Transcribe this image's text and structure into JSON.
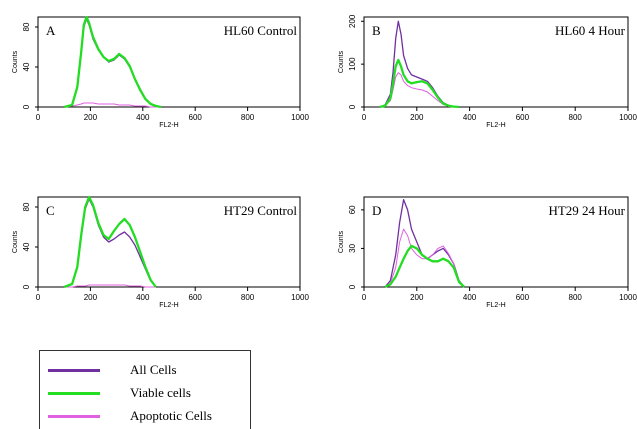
{
  "colors": {
    "all_cells": "#7030A0",
    "viable_cells": "#22DD22",
    "apoptotic_cells": "#E060E0",
    "axis": "#000000"
  },
  "legend": {
    "items": [
      {
        "label": "All Cells",
        "color": "#7030A0"
      },
      {
        "label": "Viable cells",
        "color": "#22DD22"
      },
      {
        "label": "Apoptotic Cells",
        "color": "#E060E0"
      }
    ]
  },
  "chart_data": [
    {
      "type": "area",
      "letter": "A",
      "title": "HL60 Control",
      "xlabel": "FL2-H",
      "ylabel": "Counts",
      "xlim": [
        0,
        1000
      ],
      "ylim": [
        0,
        90
      ],
      "xticks": [
        0,
        200,
        400,
        600,
        800,
        1000
      ],
      "xtick_labels": [
        "0",
        "200",
        "400",
        "600",
        "800",
        "1000"
      ],
      "yticks": [
        0,
        40,
        80
      ],
      "ytick_labels": [
        "0",
        "40",
        "80"
      ],
      "grid": false,
      "x": [
        100,
        130,
        150,
        165,
        175,
        185,
        195,
        210,
        230,
        250,
        270,
        290,
        310,
        330,
        350,
        370,
        390,
        410,
        430,
        450,
        470
      ],
      "series": [
        {
          "name": "All Cells",
          "values": [
            0,
            2,
            20,
            55,
            80,
            88,
            82,
            68,
            57,
            50,
            45,
            47,
            52,
            48,
            40,
            28,
            18,
            8,
            3,
            1,
            0
          ]
        },
        {
          "name": "Viable cells",
          "values": [
            0,
            2,
            20,
            55,
            82,
            90,
            84,
            70,
            58,
            50,
            46,
            48,
            53,
            49,
            41,
            28,
            17,
            8,
            3,
            1,
            0
          ]
        },
        {
          "name": "Apoptotic Cells",
          "values": [
            0,
            1,
            2,
            3,
            4,
            4,
            4,
            4,
            3,
            3,
            3,
            3,
            2,
            2,
            2,
            1,
            1,
            1,
            0,
            0,
            0
          ]
        }
      ]
    },
    {
      "type": "area",
      "letter": "B",
      "title": "HL60 4 Hour",
      "xlabel": "FL2-H",
      "ylabel": "Counts",
      "xlim": [
        0,
        1000
      ],
      "ylim": [
        0,
        210
      ],
      "xticks": [
        0,
        200,
        400,
        600,
        800,
        1000
      ],
      "xtick_labels": [
        "0",
        "200",
        "400",
        "600",
        "800",
        "1000"
      ],
      "yticks": [
        0,
        100,
        200
      ],
      "ytick_labels": [
        "0",
        "100",
        "200"
      ],
      "grid": false,
      "x": [
        60,
        80,
        100,
        110,
        120,
        130,
        140,
        150,
        165,
        180,
        200,
        220,
        240,
        260,
        280,
        300,
        320,
        340,
        360
      ],
      "series": [
        {
          "name": "All Cells",
          "values": [
            0,
            5,
            30,
            80,
            160,
            200,
            170,
            120,
            90,
            75,
            70,
            65,
            60,
            45,
            25,
            10,
            4,
            1,
            0
          ]
        },
        {
          "name": "Viable cells",
          "values": [
            0,
            3,
            20,
            55,
            95,
            110,
            95,
            75,
            60,
            55,
            58,
            60,
            55,
            40,
            22,
            8,
            3,
            1,
            0
          ]
        },
        {
          "name": "Apoptotic Cells",
          "values": [
            0,
            3,
            15,
            40,
            70,
            80,
            75,
            60,
            50,
            45,
            42,
            40,
            35,
            25,
            15,
            6,
            2,
            1,
            0
          ]
        }
      ]
    },
    {
      "type": "area",
      "letter": "C",
      "title": "HT29 Control",
      "xlabel": "FL2-H",
      "ylabel": "Counts",
      "xlim": [
        0,
        1000
      ],
      "ylim": [
        0,
        90
      ],
      "xticks": [
        0,
        200,
        400,
        600,
        800,
        1000
      ],
      "xtick_labels": [
        "0",
        "200",
        "400",
        "600",
        "800",
        "1000"
      ],
      "yticks": [
        0,
        40,
        80
      ],
      "ytick_labels": [
        "0",
        "40",
        "80"
      ],
      "grid": false,
      "x": [
        100,
        130,
        150,
        165,
        180,
        195,
        210,
        230,
        250,
        270,
        290,
        310,
        330,
        350,
        370,
        390,
        410,
        430,
        450
      ],
      "series": [
        {
          "name": "All Cells",
          "values": [
            0,
            3,
            20,
            50,
            78,
            88,
            80,
            62,
            50,
            45,
            48,
            52,
            55,
            50,
            42,
            30,
            18,
            6,
            0
          ]
        },
        {
          "name": "Viable cells",
          "values": [
            0,
            3,
            20,
            52,
            80,
            90,
            82,
            64,
            52,
            48,
            56,
            63,
            68,
            62,
            50,
            35,
            20,
            7,
            0
          ]
        },
        {
          "name": "Apoptotic Cells",
          "values": [
            0,
            0,
            1,
            1,
            1,
            2,
            2,
            2,
            2,
            2,
            2,
            2,
            2,
            1,
            1,
            1,
            0,
            0,
            0
          ]
        }
      ]
    },
    {
      "type": "area",
      "letter": "D",
      "title": "HT29 24 Hour",
      "xlabel": "FL2-H",
      "ylabel": "Counts",
      "xlim": [
        0,
        1000
      ],
      "ylim": [
        0,
        70
      ],
      "xticks": [
        0,
        200,
        400,
        600,
        800,
        1000
      ],
      "xtick_labels": [
        "0",
        "200",
        "400",
        "600",
        "800",
        "1000"
      ],
      "yticks": [
        0,
        30,
        60
      ],
      "ytick_labels": [
        "0",
        "30",
        "60"
      ],
      "grid": false,
      "x": [
        80,
        100,
        120,
        135,
        150,
        165,
        180,
        200,
        220,
        240,
        260,
        280,
        300,
        320,
        340,
        360,
        380
      ],
      "series": [
        {
          "name": "All Cells",
          "values": [
            0,
            5,
            25,
            50,
            68,
            60,
            45,
            35,
            25,
            22,
            25,
            28,
            30,
            25,
            18,
            5,
            0
          ]
        },
        {
          "name": "Viable cells",
          "values": [
            0,
            2,
            8,
            15,
            22,
            28,
            32,
            30,
            25,
            22,
            20,
            20,
            22,
            20,
            15,
            4,
            0
          ]
        },
        {
          "name": "Apoptotic Cells",
          "values": [
            0,
            3,
            15,
            35,
            45,
            40,
            30,
            25,
            22,
            22,
            25,
            30,
            32,
            26,
            18,
            4,
            0
          ]
        }
      ]
    }
  ]
}
